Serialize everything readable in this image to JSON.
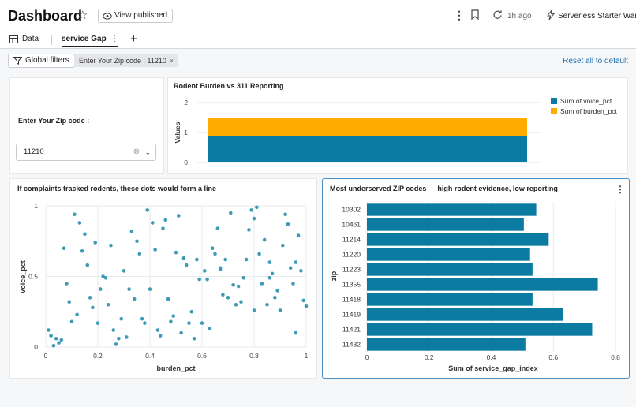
{
  "header": {
    "title": "Dashboard",
    "view_published": "View published",
    "time_ago": "1h ago",
    "warehouse": "Serverless Starter War..."
  },
  "tabs": [
    {
      "label": "Data"
    },
    {
      "label": "service Gap"
    }
  ],
  "filters": {
    "global_filters_label": "Global filters",
    "chip_label": "Enter Your Zip code : 11210",
    "reset_label": "Reset all to default"
  },
  "zip_filter": {
    "label": "Enter Your Zip code :",
    "value": "11210"
  },
  "colors": {
    "teal": "#0b7ba1",
    "amber": "#ffab00",
    "dot": "#3f9bb5",
    "link": "#2272b4"
  },
  "chart_data": [
    {
      "type": "bar",
      "stacked": true,
      "title": "Rodent Burden vs 311 Reporting",
      "ylabel": "Values",
      "ylim": [
        0,
        2
      ],
      "yticks": [
        "0",
        "1",
        "2"
      ],
      "series": [
        {
          "name": "Sum of voice_pct",
          "values": [
            0.89
          ],
          "color": "#0b7ba1"
        },
        {
          "name": "Sum of burden_pct",
          "values": [
            0.61
          ],
          "color": "#ffab00"
        }
      ],
      "legend": "right"
    },
    {
      "type": "scatter",
      "title": "If complaints tracked rodents, these dots would form a line",
      "xlabel": "burden_pct",
      "ylabel": "voice_pct",
      "xlim": [
        0,
        1
      ],
      "ylim": [
        0,
        1
      ],
      "xticks": [
        "0",
        "0.2",
        "0.4",
        "0.6",
        "0.8",
        "1"
      ],
      "yticks": [
        "0",
        "0.5",
        "1"
      ],
      "points": [
        [
          0.01,
          0.12
        ],
        [
          0.02,
          0.08
        ],
        [
          0.03,
          0.01
        ],
        [
          0.04,
          0.06
        ],
        [
          0.05,
          0.03
        ],
        [
          0.06,
          0.05
        ],
        [
          0.07,
          0.7
        ],
        [
          0.08,
          0.45
        ],
        [
          0.09,
          0.32
        ],
        [
          0.1,
          0.18
        ],
        [
          0.12,
          0.23
        ],
        [
          0.11,
          0.94
        ],
        [
          0.13,
          0.88
        ],
        [
          0.14,
          0.68
        ],
        [
          0.15,
          0.8
        ],
        [
          0.16,
          0.58
        ],
        [
          0.17,
          0.35
        ],
        [
          0.18,
          0.28
        ],
        [
          0.19,
          0.74
        ],
        [
          0.2,
          0.17
        ],
        [
          0.21,
          0.41
        ],
        [
          0.22,
          0.5
        ],
        [
          0.23,
          0.49
        ],
        [
          0.24,
          0.3
        ],
        [
          0.25,
          0.72
        ],
        [
          0.26,
          0.12
        ],
        [
          0.27,
          0.02
        ],
        [
          0.28,
          0.06
        ],
        [
          0.29,
          0.2
        ],
        [
          0.3,
          0.54
        ],
        [
          0.31,
          0.07
        ],
        [
          0.32,
          0.41
        ],
        [
          0.33,
          0.82
        ],
        [
          0.34,
          0.34
        ],
        [
          0.35,
          0.75
        ],
        [
          0.36,
          0.66
        ],
        [
          0.37,
          0.2
        ],
        [
          0.38,
          0.17
        ],
        [
          0.39,
          0.97
        ],
        [
          0.4,
          0.41
        ],
        [
          0.41,
          0.88
        ],
        [
          0.42,
          0.69
        ],
        [
          0.43,
          0.12
        ],
        [
          0.44,
          0.08
        ],
        [
          0.45,
          0.84
        ],
        [
          0.46,
          0.9
        ],
        [
          0.47,
          0.34
        ],
        [
          0.48,
          0.18
        ],
        [
          0.49,
          0.22
        ],
        [
          0.5,
          0.67
        ],
        [
          0.51,
          0.93
        ],
        [
          0.52,
          0.1
        ],
        [
          0.53,
          0.63
        ],
        [
          0.54,
          0.58
        ],
        [
          0.55,
          0.17
        ],
        [
          0.56,
          0.25
        ],
        [
          0.57,
          0.06
        ],
        [
          0.58,
          0.62
        ],
        [
          0.59,
          0.48
        ],
        [
          0.6,
          0.17
        ],
        [
          0.61,
          0.54
        ],
        [
          0.62,
          0.48
        ],
        [
          0.63,
          0.13
        ],
        [
          0.64,
          0.7
        ],
        [
          0.65,
          0.66
        ],
        [
          0.66,
          0.84
        ],
        [
          0.67,
          0.55
        ],
        [
          0.68,
          0.37
        ],
        [
          0.69,
          0.62
        ],
        [
          0.7,
          0.35
        ],
        [
          0.71,
          0.95
        ],
        [
          0.72,
          0.44
        ],
        [
          0.73,
          0.3
        ],
        [
          0.74,
          0.43
        ],
        [
          0.75,
          0.32
        ],
        [
          0.76,
          0.49
        ],
        [
          0.77,
          0.62
        ],
        [
          0.78,
          0.83
        ],
        [
          0.79,
          0.97
        ],
        [
          0.8,
          0.26
        ],
        [
          0.81,
          0.99
        ],
        [
          0.82,
          0.66
        ],
        [
          0.83,
          0.45
        ],
        [
          0.84,
          0.76
        ],
        [
          0.85,
          0.3
        ],
        [
          0.86,
          0.6
        ],
        [
          0.87,
          0.52
        ],
        [
          0.88,
          0.35
        ],
        [
          0.89,
          0.4
        ],
        [
          0.9,
          0.26
        ],
        [
          0.91,
          0.72
        ],
        [
          0.92,
          0.94
        ],
        [
          0.93,
          0.87
        ],
        [
          0.94,
          0.56
        ],
        [
          0.95,
          0.45
        ],
        [
          0.96,
          0.1
        ],
        [
          0.97,
          0.79
        ],
        [
          0.98,
          0.54
        ],
        [
          0.99,
          0.33
        ],
        [
          1.0,
          0.29
        ],
        [
          0.67,
          0.56
        ],
        [
          0.8,
          0.91
        ],
        [
          0.86,
          0.49
        ],
        [
          0.96,
          0.6
        ]
      ]
    },
    {
      "type": "bar",
      "orientation": "horizontal",
      "title": "Most underserved ZIP codes — high rodent evidence, low reporting",
      "xlabel": "Sum of service_gap_index",
      "ylabel": "zip",
      "xlim": [
        0,
        0.8
      ],
      "xticks": [
        "0",
        "0.2",
        "0.4",
        "0.6",
        "0.8"
      ],
      "categories": [
        "10302",
        "10461",
        "11214",
        "11220",
        "11223",
        "11355",
        "11418",
        "11419",
        "11421",
        "11432"
      ],
      "values": [
        0.545,
        0.505,
        0.585,
        0.525,
        0.533,
        0.743,
        0.533,
        0.632,
        0.725,
        0.51
      ]
    }
  ]
}
